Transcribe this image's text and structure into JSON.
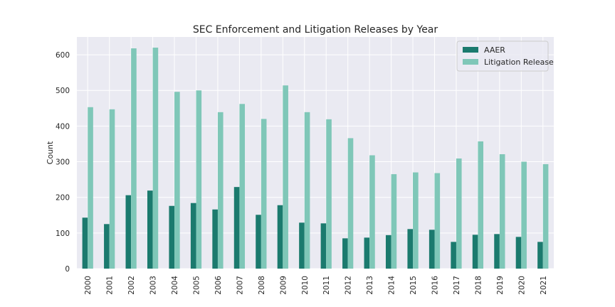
{
  "chart_data": {
    "type": "bar",
    "title": "SEC Enforcement and Litigation Releases by Year",
    "xlabel": "",
    "ylabel": "Count",
    "ylim": [
      0,
      650
    ],
    "yticks": [
      0,
      100,
      200,
      300,
      400,
      500,
      600
    ],
    "grid": true,
    "legend_position": "top-right",
    "categories": [
      "2000",
      "2001",
      "2002",
      "2003",
      "2004",
      "2005",
      "2006",
      "2007",
      "2008",
      "2009",
      "2010",
      "2011",
      "2012",
      "2013",
      "2014",
      "2015",
      "2016",
      "2017",
      "2018",
      "2019",
      "2020",
      "2021"
    ],
    "series": [
      {
        "name": "AAER",
        "color": "#1b7a6e",
        "values": [
          143,
          125,
          206,
          219,
          176,
          184,
          166,
          229,
          151,
          178,
          129,
          127,
          85,
          87,
          94,
          111,
          109,
          75,
          95,
          97,
          89,
          75
        ]
      },
      {
        "name": "Litigation Release",
        "color": "#7fc7b8",
        "values": [
          453,
          447,
          618,
          620,
          496,
          500,
          439,
          462,
          420,
          514,
          439,
          419,
          366,
          318,
          265,
          270,
          268,
          309,
          357,
          321,
          300,
          293
        ]
      }
    ]
  }
}
